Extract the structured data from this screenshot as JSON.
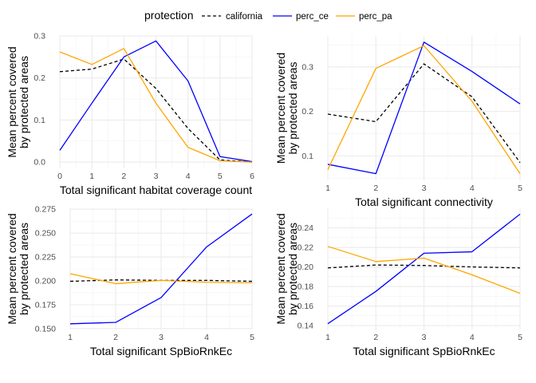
{
  "legend": {
    "title": "protection",
    "items": [
      {
        "key": "california",
        "label": "california",
        "color": "#000000",
        "dashed": true
      },
      {
        "key": "perc_ce",
        "label": "perc_ce",
        "color": "#0000ff",
        "dashed": false
      },
      {
        "key": "perc_pa",
        "label": "perc_pa",
        "color": "#ffa500",
        "dashed": false
      }
    ]
  },
  "chart_data": [
    {
      "type": "line",
      "xlabel": "Total significant habitat coverage count",
      "ylabel": [
        "Mean percent covered",
        "by protected areas"
      ],
      "xlim": [
        0,
        6
      ],
      "ylim": [
        -0.015,
        0.3
      ],
      "x_ticks": [
        0,
        1,
        2,
        3,
        4,
        5,
        6
      ],
      "y_ticks": [
        0.0,
        0.1,
        0.2,
        0.3
      ],
      "y_tick_labels": [
        "0.0",
        "0.1",
        "0.2",
        "0.3"
      ],
      "grid": true,
      "x": [
        0,
        1,
        2,
        3,
        4,
        5,
        6
      ],
      "series": [
        {
          "name": "california",
          "values": [
            0.215,
            0.221,
            0.245,
            0.175,
            0.08,
            0.005,
            0.0
          ]
        },
        {
          "name": "perc_ce",
          "values": [
            0.028,
            0.14,
            0.25,
            0.288,
            0.193,
            0.013,
            0.001
          ]
        },
        {
          "name": "perc_pa",
          "values": [
            0.262,
            0.232,
            0.27,
            0.14,
            0.035,
            0.003,
            0.0
          ]
        }
      ]
    },
    {
      "type": "line",
      "xlabel": "Total significant connectivity",
      "ylabel": [
        "Mean percent covered",
        "by protected areas"
      ],
      "xlim": [
        1,
        5
      ],
      "ylim": [
        0.045,
        0.37
      ],
      "x_ticks": [
        1,
        2,
        3,
        4,
        5
      ],
      "y_ticks": [
        0.1,
        0.2,
        0.3
      ],
      "y_tick_labels": [
        "0.1",
        "0.2",
        "0.3"
      ],
      "grid": true,
      "x": [
        1,
        2,
        3,
        4,
        5
      ],
      "series": [
        {
          "name": "california",
          "values": [
            0.194,
            0.177,
            0.307,
            0.233,
            0.085
          ]
        },
        {
          "name": "perc_ce",
          "values": [
            0.081,
            0.06,
            0.356,
            0.29,
            0.217
          ]
        },
        {
          "name": "perc_pa",
          "values": [
            0.069,
            0.297,
            0.348,
            0.223,
            0.06
          ]
        }
      ]
    },
    {
      "type": "line",
      "xlabel": "Total significant SpBioRnkEc",
      "ylabel": [
        "Mean percent covered",
        "by protected areas"
      ],
      "xlim": [
        1,
        5
      ],
      "ylim": [
        0.149,
        0.276
      ],
      "x_ticks": [
        1,
        2,
        3,
        4,
        5
      ],
      "y_ticks": [
        0.15,
        0.175,
        0.2,
        0.225,
        0.25,
        0.275
      ],
      "y_tick_labels": [
        "0.150",
        "0.175",
        "0.200",
        "0.225",
        "0.250",
        "0.275"
      ],
      "grid": true,
      "x": [
        1,
        2,
        3,
        4,
        5
      ],
      "series": [
        {
          "name": "california",
          "values": [
            0.1995,
            0.201,
            0.2005,
            0.2005,
            0.1995
          ]
        },
        {
          "name": "perc_ce",
          "values": [
            0.155,
            0.1565,
            0.1825,
            0.2355,
            0.27
          ]
        },
        {
          "name": "perc_pa",
          "values": [
            0.2075,
            0.197,
            0.2005,
            0.1985,
            0.198
          ]
        }
      ]
    },
    {
      "type": "line",
      "xlabel": "Total significant SpBioRnkEc",
      "ylabel": [
        "Mean percent covered",
        "by protected areas"
      ],
      "xlim": [
        1,
        5
      ],
      "ylim": [
        0.136,
        0.26
      ],
      "x_ticks": [
        1,
        2,
        3,
        4,
        5
      ],
      "y_ticks": [
        0.14,
        0.16,
        0.18,
        0.2,
        0.22,
        0.24
      ],
      "y_tick_labels": [
        "0.14",
        "0.16",
        "0.18",
        "0.20",
        "0.22",
        "0.24"
      ],
      "grid": true,
      "x": [
        1,
        2,
        3,
        4,
        5
      ],
      "series": [
        {
          "name": "california",
          "values": [
            0.199,
            0.202,
            0.2015,
            0.2,
            0.199
          ]
        },
        {
          "name": "perc_ce",
          "values": [
            0.142,
            0.175,
            0.214,
            0.2155,
            0.254
          ]
        },
        {
          "name": "perc_pa",
          "values": [
            0.221,
            0.2055,
            0.209,
            0.192,
            0.173
          ]
        }
      ]
    }
  ]
}
